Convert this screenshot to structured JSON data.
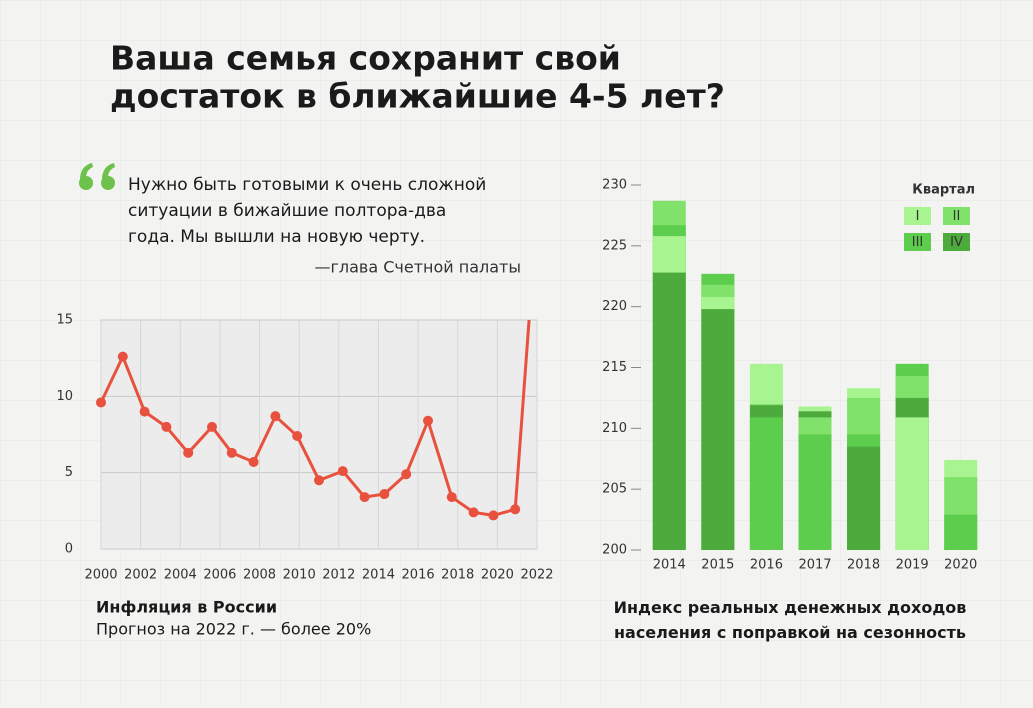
{
  "title": [
    "Ваша семья сохранит свой",
    "достаток в ближайшие 4-5 лет?"
  ],
  "quote": {
    "lines": [
      "Нужно быть готовыми к очень сложной",
      "ситуации в бижайшие полтора-два",
      "года. Мы вышли на новую черту."
    ],
    "author": "—глава Счетной палаты"
  },
  "chart_data": [
    {
      "type": "line",
      "title": "Инфляция в России",
      "subtitle": "Прогноз на 2022 г. — более 20%",
      "x": [
        2000,
        2001.1,
        2002.2,
        2003.3,
        2004.4,
        2005.6,
        2006.6,
        2007.7,
        2008.8,
        2009.9,
        2011.0,
        2012.2,
        2013.3,
        2014.3,
        2015.4,
        2016.5,
        2017.7,
        2018.8,
        2019.8,
        2020.9,
        2021.6
      ],
      "values": [
        9.6,
        12.6,
        9.0,
        8.0,
        6.3,
        8.0,
        6.3,
        5.7,
        8.7,
        7.4,
        4.5,
        5.1,
        3.4,
        3.6,
        4.9,
        8.4,
        3.4,
        2.4,
        2.2,
        2.6,
        15
      ],
      "color": "#e8513d",
      "xlim": [
        2000,
        2022
      ],
      "xticks": [
        2000,
        2002,
        2004,
        2006,
        2008,
        2010,
        2012,
        2014,
        2016,
        2018,
        2020,
        2022
      ],
      "ylim": [
        0,
        15
      ],
      "yticks": [
        0,
        5,
        10,
        15
      ],
      "grid": true
    },
    {
      "type": "bar",
      "mode": "overlap",
      "title": "Индекс реальных денежных доходов населения с поправкой на сезонность",
      "categories": [
        "2014",
        "2015",
        "2016",
        "2017",
        "2018",
        "2019",
        "2020"
      ],
      "legend_title": "Квартал",
      "legend": "top-right",
      "series": [
        {
          "name": "I",
          "color": "#a8f490",
          "values": [
            225.8,
            220.8,
            215.3,
            211.8,
            213.3,
            210.9,
            207.4
          ]
        },
        {
          "name": "II",
          "color": "#80e26a",
          "values": [
            228.7,
            221.8,
            212.0,
            210.9,
            212.5,
            214.3,
            206.0
          ]
        },
        {
          "name": "III",
          "color": "#5ccd4c",
          "values": [
            226.7,
            222.7,
            210.9,
            209.5,
            209.5,
            215.3,
            202.9
          ]
        },
        {
          "name": "IV",
          "color": "#4cab3c",
          "values": [
            222.8,
            219.8,
            211.9,
            211.4,
            208.5,
            212.5,
            null
          ]
        }
      ],
      "ylim": [
        200,
        230
      ],
      "yticks": [
        200,
        205,
        210,
        215,
        220,
        225,
        230
      ]
    }
  ]
}
